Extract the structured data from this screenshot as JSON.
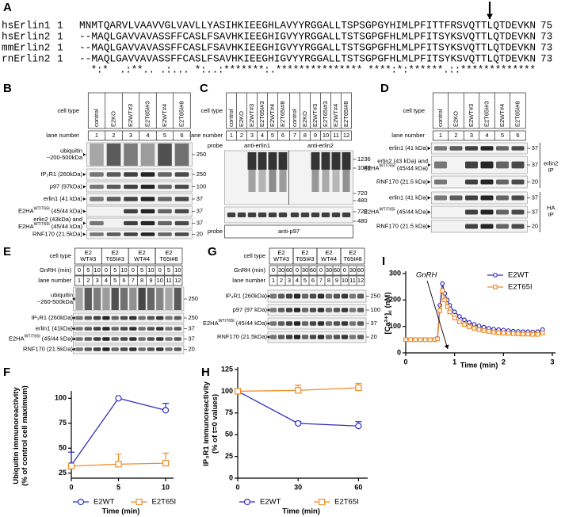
{
  "figure": {
    "A": {
      "letter": "A",
      "rows": [
        {
          "name": "hsErlin1",
          "start": 1,
          "sequence": "MNMTQARVLVAAVVGLVAVLLYASIHKIEEGHLAVYYRGGALLTSPSGPGYHIMLPFITTFRSVQTTLQTDEVKN",
          "end": 75
        },
        {
          "name": "hsErlin2",
          "start": 1,
          "sequence": "--MAQLGAVVAVASSFFCASLFSAVHKIEEGHIGVYYRGGALLTSTSGPGFHLMLPFITSYKSVQTTLQTDEVKN",
          "end": 73
        },
        {
          "name": "mmErlin2",
          "start": 1,
          "sequence": "--MAQLGAVVAVASSFFCASLFSAVHKIEEGHIGVYYRGGALLTSTSGPGFHLMLPFITSYKSVQTTLQTDEVKN",
          "end": 73
        },
        {
          "name": "rnErlin2",
          "start": 1,
          "sequence": "--MAQLGAVVAVASSFFCASLFSAVHKIEEGHIGVYYRGGALLTSTSGPGFHLMLPFITSYKSVQTTLQTDEVKN",
          "end": 73
        }
      ],
      "consensus": "  *:*  .:**.. .:... *:..:*******:.*************** ****:*:******.::*************"
    },
    "B": {
      "letter": "B",
      "cell_type_label": "cell type",
      "lane_number_label": "lane number",
      "cell_types": [
        "control",
        "E2KO",
        "E2WT#3",
        "E2T65I#3",
        "E2WT#4",
        "E2T65I#8"
      ],
      "lane_numbers": [
        1,
        2,
        3,
        4,
        5,
        6
      ],
      "blots": [
        {
          "label": [
            "ubiquitin",
            "~200-500kDa"
          ],
          "marker": 250
        },
        {
          "label": "IP₃R1 (260kDa)",
          "marker": 250
        },
        {
          "label": "p97 (97kDa)",
          "marker": 100
        },
        {
          "label": "erlin1 (41 kDa)",
          "marker": 37
        },
        {
          "label": {
            "text": "E2HA",
            "sup": "WT/T65I",
            "after": " (45/44 kDa)"
          },
          "marker": 37
        },
        {
          "label": [
            "erlin2 (43kDa) and",
            {
              "text": "E2HA",
              "sup": "WT/T65I",
              "after": " (45/44 kDa)"
            }
          ],
          "marker": 37
        },
        {
          "label": "RNF170 (21.5kDa)",
          "marker": 20
        }
      ]
    },
    "C": {
      "letter": "C",
      "cell_type_label": "cell type",
      "lane_number_label": "lane number",
      "cell_types": [
        "control",
        "E2KO",
        "E2WT#3",
        "E2T65I#3",
        "E2WT#4",
        "E2T65I#8",
        "control",
        "E2KO",
        "E2WT#3",
        "E2T65I#3",
        "E2WT#4",
        "E2T65I#8"
      ],
      "lane_numbers": [
        1,
        2,
        3,
        4,
        5,
        6,
        7,
        8,
        9,
        10,
        11,
        12
      ],
      "probe_label": "probe",
      "probes": [
        "anti-erlin1",
        "anti-erlin2"
      ],
      "markers": [
        1236,
        1048,
        720,
        480
      ],
      "p97_markers": [
        720,
        480
      ],
      "bottom_probe_label": "probe",
      "bottom_probe": "anti-p97"
    },
    "D": {
      "letter": "D",
      "cell_type_label": "cell type",
      "lane_number_label": "lane number",
      "cell_types": [
        "control",
        "E2KO",
        "E2WT#3",
        "E2T65I#3",
        "E2WT#4",
        "E2T65I#8"
      ],
      "lane_numbers": [
        1,
        2,
        3,
        4,
        5,
        6
      ],
      "blots": [
        {
          "label": "erlin1 (41 kDa)",
          "marker": 37
        },
        {
          "label": [
            "erlin2 (43 kDa) and",
            {
              "text": "E2HA",
              "sup": "WT/T65I",
              "after": " (45/44 kDa)"
            }
          ],
          "marker": 37
        },
        {
          "label": "RNF170 (21.5 kDa)",
          "marker": 20
        },
        {
          "label": "erlin1 (41 kDa)",
          "marker": 37
        },
        {
          "label": {
            "text": "E2HA",
            "sup": "WT/T65I",
            "after": " (45/44 kDa)"
          },
          "marker": 37
        },
        {
          "label": "RNF170 (21.5 kDa)",
          "marker": 20
        }
      ],
      "ip_labels": [
        [
          "erlin2",
          "IP"
        ],
        [
          "HA",
          "IP"
        ]
      ]
    },
    "E": {
      "letter": "E",
      "cell_type_label": "cell type",
      "gnrh_label": "GnRH (min)",
      "lane_number_label": "lane number",
      "groups": [
        [
          "E2",
          "WT#3"
        ],
        [
          "E2",
          "T65I#3"
        ],
        [
          "E2",
          "WT#4"
        ],
        [
          "E2",
          "T65I#8"
        ]
      ],
      "gnrh_times": [
        0,
        5,
        10,
        0,
        5,
        10,
        0,
        5,
        10,
        0,
        5,
        10
      ],
      "lane_numbers": [
        1,
        2,
        3,
        4,
        5,
        6,
        7,
        8,
        9,
        10,
        11,
        12
      ],
      "blots": [
        {
          "label": [
            "ubiquitin",
            "~260-500kDa"
          ],
          "marker": 250
        },
        {
          "label": "IP₃R1 (260kDa)",
          "marker": 250
        },
        {
          "label": "erlin1 (41kDa)",
          "marker": 37
        },
        {
          "label": {
            "text": "E2HA",
            "sup": "WT/T65I",
            "after": " (45/44 kDa)"
          },
          "marker": 37
        },
        {
          "label": "RNF170 (21.5kDa)",
          "marker": 20
        }
      ]
    },
    "G": {
      "letter": "G",
      "cell_type_label": "cell type",
      "gnrh_label": "GnRH (min)",
      "lane_number_label": "lane number",
      "groups": [
        [
          "E2",
          "WT#3"
        ],
        [
          "E2",
          "T65I#3"
        ],
        [
          "E2",
          "WT#4"
        ],
        [
          "E2",
          "T65I#8"
        ]
      ],
      "gnrh_times": [
        0,
        30,
        60,
        0,
        30,
        60,
        0,
        30,
        60,
        0,
        30,
        60
      ],
      "lane_numbers": [
        1,
        2,
        3,
        4,
        5,
        6,
        7,
        8,
        9,
        10,
        11,
        12
      ],
      "blots": [
        {
          "label": "IP₃R1 (260kDa)",
          "marker": 250
        },
        {
          "label": "p97 (97 kDa)",
          "marker": 100
        },
        {
          "label": {
            "text": "E2HA",
            "sup": "WT/T65I",
            "after": " (45/44 kDa)"
          },
          "marker": 37
        },
        {
          "label": "RNF170 (21.5kDa)",
          "marker": 20
        }
      ]
    }
  },
  "chart_data": [
    {
      "type": "line",
      "panel": "F",
      "x_label": "Time (min)",
      "y_label": [
        "Ubiquitin immunoreactivity",
        "(% of control cell maximum)"
      ],
      "x": [
        0,
        5,
        10
      ],
      "xlim": [
        0,
        10.5
      ],
      "xticks": [
        0,
        5,
        10
      ],
      "ylim": [
        20,
        105
      ],
      "yticks": [
        25,
        50,
        75,
        100
      ],
      "legend": "bottom",
      "series": [
        {
          "name": "E2WT",
          "color": "#3030c0",
          "marker": "circle",
          "values": [
            33,
            100,
            88
          ],
          "errors": [
            13,
            0,
            7
          ]
        },
        {
          "name": "E2T65I",
          "color": "#f08c28",
          "marker": "square",
          "values": [
            32,
            34,
            35
          ],
          "errors": [
            0,
            10,
            10
          ]
        }
      ]
    },
    {
      "type": "line",
      "panel": "H",
      "x_label": "Time (min)",
      "y_label": [
        "IP₃R1 immunoreactivity",
        "(% of t=0 values)"
      ],
      "x": [
        0,
        30,
        60
      ],
      "xlim": [
        0,
        63
      ],
      "xticks": [
        0,
        30,
        60
      ],
      "ylim": [
        0,
        125
      ],
      "yticks": [
        0,
        25,
        50,
        75,
        100,
        125
      ],
      "legend": "bottom",
      "series": [
        {
          "name": "E2WT",
          "color": "#3030c0",
          "marker": "circle",
          "values": [
            100,
            63,
            60
          ],
          "errors": [
            0,
            2,
            5
          ]
        },
        {
          "name": "E2T65I",
          "color": "#f08c28",
          "marker": "square",
          "values": [
            100,
            101,
            104
          ],
          "errors": [
            0,
            6,
            5
          ]
        }
      ]
    },
    {
      "type": "line",
      "panel": "I",
      "x_label": "Time (min)",
      "y_label": {
        "text": "[Ca²⁺]",
        "sub": "c",
        "after": " (nM)"
      },
      "annotation": "GnRH",
      "x": [
        0,
        0.1,
        0.2,
        0.3,
        0.4,
        0.5,
        0.6,
        0.65,
        0.7,
        0.75,
        0.8,
        0.85,
        0.9,
        1.0,
        1.1,
        1.2,
        1.3,
        1.4,
        1.5,
        1.6,
        1.7,
        1.8,
        1.9,
        2.0,
        2.1,
        2.2,
        2.3,
        2.4,
        2.5,
        2.6,
        2.7,
        2.8
      ],
      "xlim": [
        0,
        3
      ],
      "xticks": [
        0,
        1,
        2,
        3
      ],
      "ylim": [
        0,
        300
      ],
      "yticks": [
        0,
        100,
        200,
        300
      ],
      "legend": "upper right",
      "series": [
        {
          "name": "E2WT",
          "color": "#3030c0",
          "marker": "circle",
          "values": [
            50,
            50,
            50,
            50,
            50,
            50,
            50,
            55,
            180,
            262,
            225,
            200,
            180,
            155,
            138,
            125,
            115,
            108,
            102,
            97,
            93,
            90,
            88,
            86,
            84,
            82,
            81,
            80,
            80,
            79,
            80,
            88
          ]
        },
        {
          "name": "E2T65I",
          "color": "#f08c28",
          "marker": "square",
          "values": [
            50,
            50,
            50,
            50,
            50,
            50,
            50,
            53,
            160,
            235,
            200,
            175,
            155,
            132,
            118,
            107,
            99,
            93,
            88,
            84,
            81,
            78,
            76,
            75,
            74,
            73,
            72,
            71,
            71,
            70,
            70,
            75
          ]
        }
      ]
    }
  ]
}
